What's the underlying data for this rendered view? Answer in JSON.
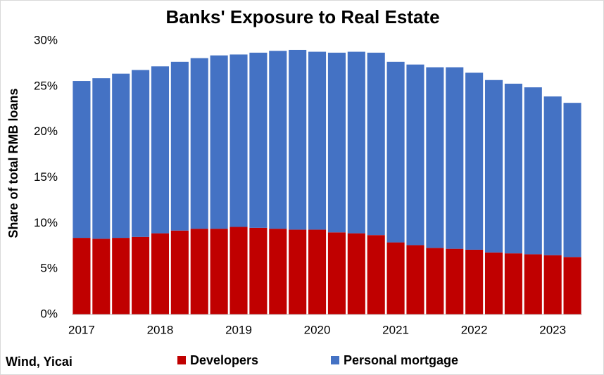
{
  "chart_data": {
    "type": "stacked_bar",
    "title": "Banks' Exposure to Real Estate",
    "y_label": "Share of total RMB loans",
    "source": "Wind, Yicai",
    "categories": [
      "2017",
      null,
      null,
      null,
      "2018",
      null,
      null,
      null,
      "2019",
      null,
      null,
      null,
      "2020",
      null,
      null,
      null,
      "2021",
      null,
      null,
      null,
      "2022",
      null,
      null,
      null,
      "2023",
      null
    ],
    "series": [
      {
        "name": "Developers",
        "color": "#c00000",
        "values": [
          8.4,
          8.3,
          8.4,
          8.5,
          8.9,
          9.2,
          9.4,
          9.4,
          9.6,
          9.5,
          9.4,
          9.3,
          9.3,
          9.0,
          8.9,
          8.7,
          7.9,
          7.6,
          7.3,
          7.2,
          7.1,
          6.8,
          6.7,
          6.6,
          6.5,
          6.3
        ]
      },
      {
        "name": "Personal mortgage",
        "color": "#4472c4",
        "values": [
          17.2,
          17.6,
          18.0,
          18.3,
          18.3,
          18.5,
          18.7,
          19.0,
          18.9,
          19.2,
          19.5,
          19.7,
          19.5,
          19.7,
          19.9,
          20.0,
          19.8,
          19.8,
          19.8,
          19.9,
          19.4,
          18.9,
          18.6,
          18.3,
          17.4,
          16.9
        ]
      }
    ],
    "ylim": [
      0,
      30
    ],
    "yticks": [
      {
        "value": 0,
        "label": "0%"
      },
      {
        "value": 5,
        "label": "5%"
      },
      {
        "value": 10,
        "label": "10%"
      },
      {
        "value": 15,
        "label": "15%"
      },
      {
        "value": 20,
        "label": "20%"
      },
      {
        "value": 25,
        "label": "25%"
      },
      {
        "value": 30,
        "label": "30%"
      }
    ],
    "grid": false,
    "legend": "bottom"
  }
}
